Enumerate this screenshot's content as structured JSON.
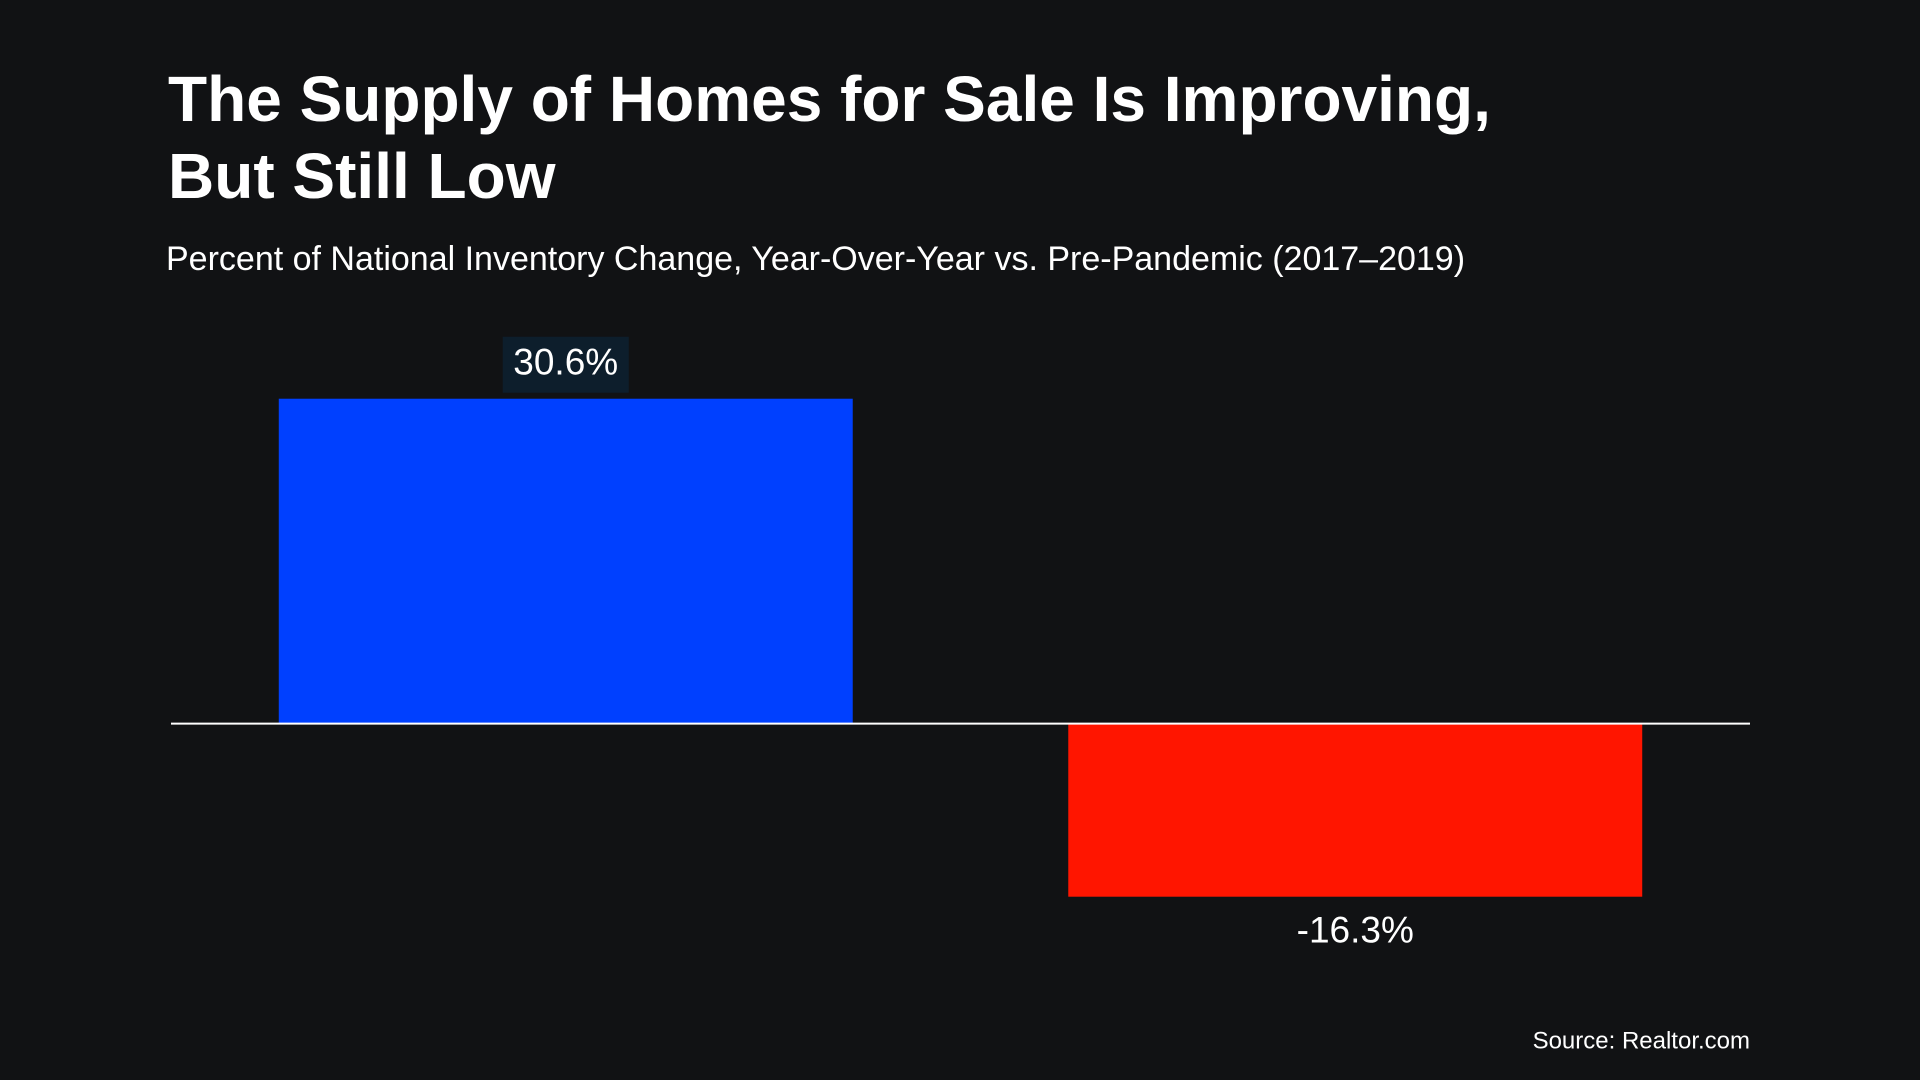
{
  "chart_data": {
    "type": "bar",
    "title": [
      "The Supply of Homes for Sale Is Improving,",
      "But Still Low"
    ],
    "subtitle": "Percent of National Inventory Change, Year-Over-Year vs. Pre-Pandemic (2017–2019)",
    "categories": [
      null,
      null
    ],
    "values": [
      30.6,
      -16.3
    ],
    "value_labels": [
      "30.6%",
      "-16.3%"
    ],
    "colors": [
      "#0040ff",
      "#ff1500"
    ],
    "ylim": [
      -20,
      35
    ],
    "source": "Source: Realtor.com"
  }
}
